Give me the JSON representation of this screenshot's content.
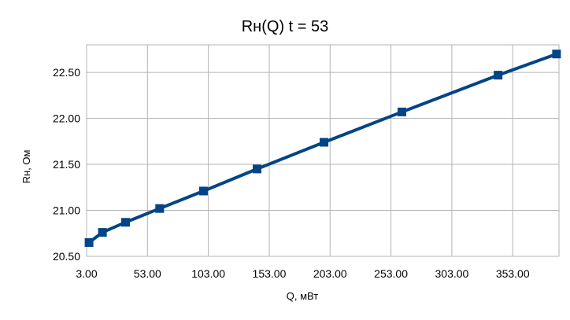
{
  "chart_data": {
    "type": "line",
    "title": "Rн(Q) t = 53",
    "xlabel": "Q, мВт",
    "ylabel": "Rн, Ом",
    "xlim": [
      3,
      391
    ],
    "ylim": [
      20.5,
      22.8
    ],
    "x_ticks": [
      3,
      53,
      103,
      153,
      203,
      253,
      303,
      353
    ],
    "x_tick_labels": [
      "3.00",
      "53.00",
      "103.00",
      "153.00",
      "203.00",
      "253.00",
      "303.00",
      "353.00"
    ],
    "y_ticks": [
      20.5,
      21.0,
      21.5,
      22.0,
      22.5
    ],
    "y_tick_labels": [
      "20.50",
      "21.00",
      "21.50",
      "22.00",
      "22.50"
    ],
    "grid": true,
    "legend": "none",
    "series_color": "#004586",
    "series": [
      {
        "x": [
          5,
          16,
          35,
          63,
          99,
          143,
          198,
          262,
          341,
          389
        ],
        "y": [
          20.65,
          20.76,
          20.87,
          21.02,
          21.21,
          21.45,
          21.74,
          22.07,
          22.47,
          22.7
        ]
      }
    ]
  }
}
